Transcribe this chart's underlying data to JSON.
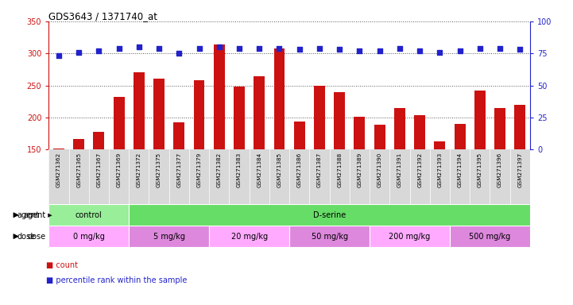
{
  "title": "GDS3643 / 1371740_at",
  "samples": [
    "GSM271362",
    "GSM271365",
    "GSM271367",
    "GSM271369",
    "GSM271372",
    "GSM271375",
    "GSM271377",
    "GSM271379",
    "GSM271382",
    "GSM271383",
    "GSM271384",
    "GSM271385",
    "GSM271386",
    "GSM271387",
    "GSM271388",
    "GSM271389",
    "GSM271390",
    "GSM271391",
    "GSM271392",
    "GSM271393",
    "GSM271394",
    "GSM271395",
    "GSM271396",
    "GSM271397"
  ],
  "counts": [
    152,
    166,
    178,
    232,
    270,
    261,
    192,
    258,
    314,
    248,
    264,
    308,
    193,
    250,
    239,
    201,
    189,
    215,
    204,
    163,
    190,
    242,
    215,
    220
  ],
  "percentiles": [
    73,
    76,
    77,
    79,
    80,
    79,
    75,
    79,
    80,
    79,
    79,
    79,
    78,
    79,
    78,
    77,
    77,
    79,
    77,
    76,
    77,
    79,
    79,
    78
  ],
  "ylim_left": [
    150,
    350
  ],
  "ylim_right": [
    0,
    100
  ],
  "yticks_left": [
    150,
    200,
    250,
    300,
    350
  ],
  "yticks_right": [
    0,
    25,
    50,
    75,
    100
  ],
  "bar_color": "#cc1111",
  "dot_color": "#2222cc",
  "sample_bg": "#d8d8d8",
  "agent_row": [
    {
      "label": "control",
      "start": 0,
      "end": 4,
      "color": "#99ee99"
    },
    {
      "label": "D-serine",
      "start": 4,
      "end": 24,
      "color": "#66dd66"
    }
  ],
  "dose_row": [
    {
      "label": "0 mg/kg",
      "start": 0,
      "end": 4,
      "color": "#ffaaff"
    },
    {
      "label": "5 mg/kg",
      "start": 4,
      "end": 8,
      "color": "#dd88dd"
    },
    {
      "label": "20 mg/kg",
      "start": 8,
      "end": 12,
      "color": "#ffaaff"
    },
    {
      "label": "50 mg/kg",
      "start": 12,
      "end": 16,
      "color": "#dd88dd"
    },
    {
      "label": "200 mg/kg",
      "start": 16,
      "end": 20,
      "color": "#ffaaff"
    },
    {
      "label": "500 mg/kg",
      "start": 20,
      "end": 24,
      "color": "#dd88dd"
    }
  ],
  "grid_color": "#555555",
  "left_axis_color": "#cc1111",
  "right_axis_color": "#2222cc",
  "n_samples": 24
}
